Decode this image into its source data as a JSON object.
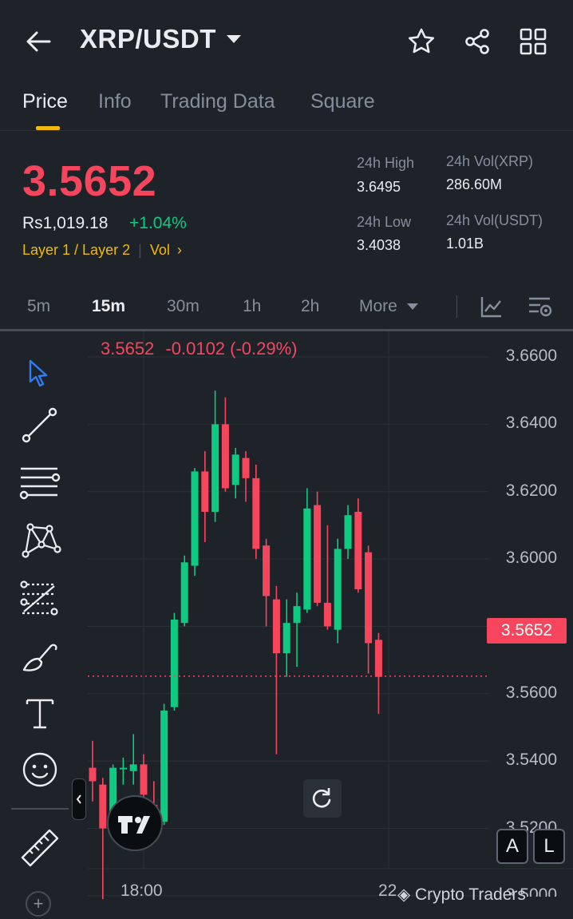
{
  "header": {
    "pair": "XRP/USDT"
  },
  "tabs": [
    {
      "label": "Price"
    },
    {
      "label": "Info"
    },
    {
      "label": "Trading Data"
    },
    {
      "label": "Square"
    }
  ],
  "ticker": {
    "last_price": "3.5652",
    "fiat_price": "Rs1,019.18",
    "change_pct": "+1.04%",
    "tags": "Layer 1 / Layer 2",
    "vol_tag": "Vol",
    "high_label": "24h High",
    "high_value": "3.6495",
    "low_label": "24h Low",
    "low_value": "3.4038",
    "vol_xrp_label": "24h Vol(XRP)",
    "vol_xrp_value": "286.60M",
    "vol_usdt_label": "24h Vol(USDT)",
    "vol_usdt_value": "1.01B"
  },
  "intervals": [
    {
      "label": "5m"
    },
    {
      "label": "15m"
    },
    {
      "label": "30m"
    },
    {
      "label": "1h"
    },
    {
      "label": "2h"
    },
    {
      "label": "More"
    }
  ],
  "chart_legend": {
    "price": "3.5652",
    "change": "-0.0102 (-0.29%)"
  },
  "price_axis": [
    "3.6600",
    "3.6400",
    "3.6200",
    "3.6000",
    "3.5800",
    "3.5600",
    "3.5400",
    "3.5200",
    "3.5000"
  ],
  "last_price_label": "3.5652",
  "time_axis": [
    "18:00",
    "22"
  ],
  "scale_buttons": {
    "auto": "A",
    "log": "L"
  },
  "watermark": "Crypto Traders",
  "colors": {
    "up": "#0ecb81",
    "down": "#f6465d",
    "accent": "#f0b90b",
    "background": "#1e2329"
  },
  "chart_data": {
    "type": "candlestick",
    "y_range": [
      3.4938,
      3.6676
    ],
    "last_price": 3.5652,
    "candles": [
      {
        "o": 3.538,
        "h": 3.546,
        "l": 3.528,
        "c": 3.534
      },
      {
        "o": 3.533,
        "h": 3.535,
        "l": 3.499,
        "c": 3.52
      },
      {
        "o": 3.52,
        "h": 3.539,
        "l": 3.518,
        "c": 3.538
      },
      {
        "o": 3.538,
        "h": 3.541,
        "l": 3.533,
        "c": 3.538
      },
      {
        "o": 3.537,
        "h": 3.548,
        "l": 3.533,
        "c": 3.539
      },
      {
        "o": 3.539,
        "h": 3.542,
        "l": 3.516,
        "c": 3.53
      },
      {
        "o": 3.527,
        "h": 3.534,
        "l": 3.519,
        "c": 3.523
      },
      {
        "o": 3.522,
        "h": 3.557,
        "l": 3.521,
        "c": 3.555
      },
      {
        "o": 3.556,
        "h": 3.584,
        "l": 3.555,
        "c": 3.582
      },
      {
        "o": 3.581,
        "h": 3.601,
        "l": 3.58,
        "c": 3.599
      },
      {
        "o": 3.598,
        "h": 3.627,
        "l": 3.595,
        "c": 3.626
      },
      {
        "o": 3.626,
        "h": 3.632,
        "l": 3.605,
        "c": 3.614
      },
      {
        "o": 3.614,
        "h": 3.65,
        "l": 3.611,
        "c": 3.64
      },
      {
        "o": 3.64,
        "h": 3.648,
        "l": 3.62,
        "c": 3.621
      },
      {
        "o": 3.622,
        "h": 3.633,
        "l": 3.618,
        "c": 3.631
      },
      {
        "o": 3.63,
        "h": 3.632,
        "l": 3.617,
        "c": 3.624
      },
      {
        "o": 3.624,
        "h": 3.628,
        "l": 3.6,
        "c": 3.603
      },
      {
        "o": 3.604,
        "h": 3.606,
        "l": 3.58,
        "c": 3.589
      },
      {
        "o": 3.588,
        "h": 3.592,
        "l": 3.542,
        "c": 3.572
      },
      {
        "o": 3.572,
        "h": 3.588,
        "l": 3.565,
        "c": 3.581
      },
      {
        "o": 3.581,
        "h": 3.59,
        "l": 3.568,
        "c": 3.586
      },
      {
        "o": 3.585,
        "h": 3.621,
        "l": 3.584,
        "c": 3.615
      },
      {
        "o": 3.616,
        "h": 3.62,
        "l": 3.586,
        "c": 3.587
      },
      {
        "o": 3.587,
        "h": 3.61,
        "l": 3.579,
        "c": 3.58
      },
      {
        "o": 3.579,
        "h": 3.606,
        "l": 3.575,
        "c": 3.603
      },
      {
        "o": 3.603,
        "h": 3.616,
        "l": 3.6,
        "c": 3.613
      },
      {
        "o": 3.614,
        "h": 3.618,
        "l": 3.59,
        "c": 3.591
      },
      {
        "o": 3.602,
        "h": 3.604,
        "l": 3.566,
        "c": 3.575
      },
      {
        "o": 3.576,
        "h": 3.578,
        "l": 3.554,
        "c": 3.565
      }
    ]
  }
}
